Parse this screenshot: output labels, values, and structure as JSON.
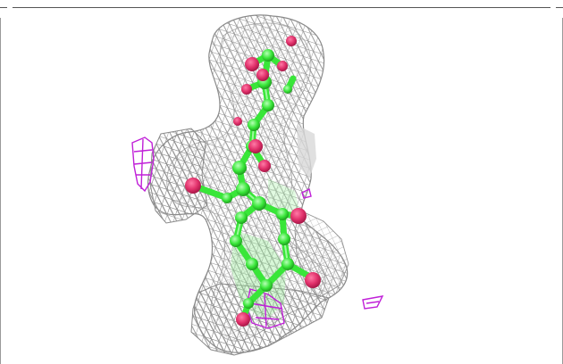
{
  "scene": {
    "background": "#ffffff",
    "mesh_color": "#8e8e8e",
    "carbon_color": "#39e639",
    "oxygen_color": "#e0306a",
    "difference_map_color": "#c020d8",
    "frame_color": "#555555"
  }
}
